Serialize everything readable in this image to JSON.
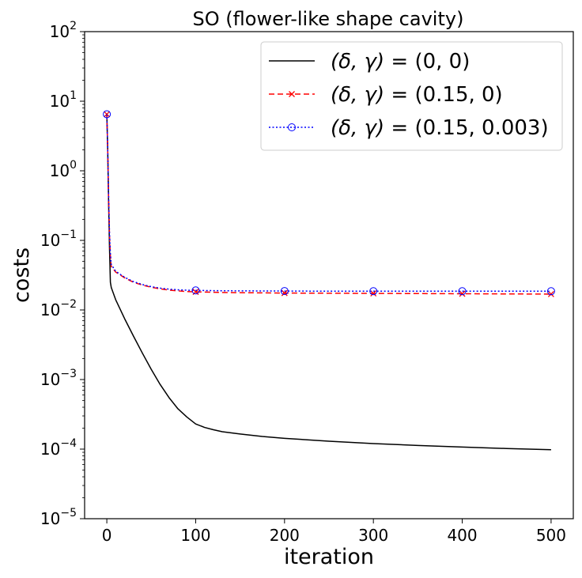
{
  "chart_data": {
    "type": "line",
    "title": "SO (flower-like shape cavity)",
    "xlabel": "iteration",
    "ylabel": "costs",
    "xscale": "linear",
    "yscale": "log",
    "xlim": [
      -25,
      525
    ],
    "ylim": [
      1e-05,
      100
    ],
    "xticks": [
      0,
      100,
      200,
      300,
      400,
      500
    ],
    "xtick_labels": [
      "0",
      "100",
      "200",
      "300",
      "400",
      "500"
    ],
    "yticks": [
      1e-05,
      0.0001,
      0.001,
      0.01,
      0.1,
      1,
      10,
      100
    ],
    "ytick_labels": [
      {
        "base": "10",
        "exp": "−5"
      },
      {
        "base": "10",
        "exp": "−4"
      },
      {
        "base": "10",
        "exp": "−3"
      },
      {
        "base": "10",
        "exp": "−2"
      },
      {
        "base": "10",
        "exp": "−1"
      },
      {
        "base": "10",
        "exp": "0"
      },
      {
        "base": "10",
        "exp": "1"
      },
      {
        "base": "10",
        "exp": "2"
      }
    ],
    "grid": false,
    "legend_position": "top-right",
    "series": [
      {
        "name": "(δ, γ) = (0, 0)",
        "color": "#000000",
        "linestyle": "solid",
        "marker": "none",
        "x": [
          0,
          1,
          2,
          3,
          4,
          5,
          10,
          20,
          30,
          40,
          50,
          60,
          70,
          80,
          90,
          100,
          110,
          120,
          130,
          150,
          175,
          200,
          250,
          300,
          350,
          400,
          450,
          500
        ],
        "y": [
          6.5,
          2.0,
          0.35,
          0.08,
          0.025,
          0.021,
          0.014,
          0.0075,
          0.0042,
          0.0024,
          0.0014,
          0.00085,
          0.00055,
          0.00038,
          0.00029,
          0.00023,
          0.000205,
          0.00019,
          0.000178,
          0.000165,
          0.000152,
          0.000143,
          0.00013,
          0.00012,
          0.000113,
          0.000107,
          0.000102,
          9.8e-05
        ]
      },
      {
        "name": "(δ, γ) = (0.15, 0)",
        "color": "#ff0000",
        "linestyle": "dashed",
        "marker": "x",
        "markevery": 100,
        "x": [
          0,
          1,
          2,
          3,
          4,
          5,
          10,
          20,
          30,
          40,
          50,
          60,
          70,
          80,
          90,
          100,
          125,
          150,
          200,
          250,
          300,
          350,
          400,
          450,
          500
        ],
        "y": [
          6.5,
          2.0,
          0.4,
          0.12,
          0.06,
          0.042,
          0.035,
          0.029,
          0.025,
          0.0228,
          0.0212,
          0.0201,
          0.0193,
          0.0188,
          0.0184,
          0.0182,
          0.0179,
          0.0177,
          0.0175,
          0.0174,
          0.0173,
          0.0172,
          0.0171,
          0.017,
          0.0169
        ]
      },
      {
        "name": "(δ, γ) = (0.15, 0.003)",
        "color": "#0000ff",
        "linestyle": "dotted",
        "marker": "o",
        "markevery": 100,
        "x": [
          0,
          1,
          2,
          3,
          4,
          5,
          10,
          20,
          30,
          40,
          50,
          60,
          70,
          80,
          90,
          100,
          125,
          150,
          200,
          250,
          300,
          350,
          400,
          450,
          500
        ],
        "y": [
          6.5,
          2.1,
          0.45,
          0.13,
          0.065,
          0.045,
          0.036,
          0.0295,
          0.0255,
          0.0232,
          0.0216,
          0.0206,
          0.0199,
          0.0195,
          0.0192,
          0.0191,
          0.0189,
          0.0188,
          0.0187,
          0.0186,
          0.0186,
          0.0186,
          0.0186,
          0.0186,
          0.0186
        ]
      }
    ],
    "legend_labels": [
      {
        "lhs": "(δ, γ)",
        "eq": " = ",
        "rhs": "(0, 0)"
      },
      {
        "lhs": "(δ, γ)",
        "eq": " = ",
        "rhs": "(0.15, 0)"
      },
      {
        "lhs": "(δ, γ)",
        "eq": " = ",
        "rhs": "(0.15, 0.003)"
      }
    ]
  }
}
